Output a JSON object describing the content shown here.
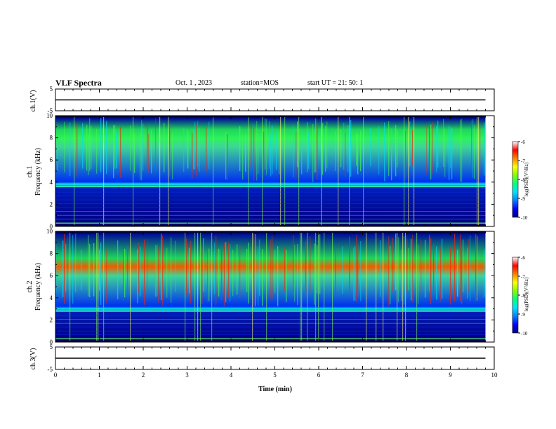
{
  "header": {
    "title": "VLF Spectra",
    "date": "Oct. 1 , 2023",
    "station": "station=MOS",
    "start": "start UT =  21: 50: 1"
  },
  "chart_data": [
    {
      "type": "line",
      "panel": "ch1-voltage",
      "ylabel": "ch.1(V)",
      "ylim": [
        -5,
        5
      ],
      "yticks": [
        "5",
        "-5"
      ],
      "series": [
        {
          "x": [
            0.0,
            9.8
          ],
          "y": [
            0.0,
            0.0
          ]
        }
      ]
    },
    {
      "type": "heatmap",
      "panel": "ch1-spectrogram",
      "ylabel": "ch.1",
      "ylabel2": "Frequency (kHz)",
      "ylim": [
        0,
        10
      ],
      "yticks": [
        "0",
        "2",
        "4",
        "6",
        "8",
        "10"
      ],
      "xlim": [
        0,
        10
      ],
      "data_end_min": 9.8,
      "colorbar": {
        "label": "log(PSD)(V²/Hz)",
        "range": [
          -10,
          -6
        ],
        "ticks": [
          "-6",
          "-7",
          "-8",
          "-9",
          "-10"
        ]
      },
      "band_khz": [
        4.0,
        9.8
      ],
      "peak_khz": 8.0
    },
    {
      "type": "heatmap",
      "panel": "ch2-spectrogram",
      "ylabel": "ch.2",
      "ylabel2": "Frequency (kHz)",
      "ylim": [
        0,
        10
      ],
      "yticks": [
        "0",
        "2",
        "4",
        "6",
        "8",
        "10"
      ],
      "xlim": [
        0,
        10
      ],
      "data_end_min": 9.8,
      "colorbar": {
        "label": "log(PSD)(V²/Hz)",
        "range": [
          -10,
          -6
        ],
        "ticks": [
          "-6",
          "-7",
          "-8",
          "-9",
          "-10"
        ]
      },
      "band_khz": [
        3.2,
        9.8
      ],
      "peak_khz": 6.8
    },
    {
      "type": "line",
      "panel": "ch3-voltage",
      "ylabel": "ch.3(V)",
      "ylim": [
        -5,
        5
      ],
      "yticks": [
        "5",
        "-5"
      ],
      "xlabel": "Time (min)",
      "xticks": [
        "0",
        "1",
        "2",
        "3",
        "4",
        "5",
        "6",
        "7",
        "8",
        "9",
        "10"
      ],
      "series": [
        {
          "x": [
            0.0,
            9.8
          ],
          "y": [
            0.0,
            0.0
          ]
        }
      ]
    }
  ],
  "colors": {
    "colormap": [
      "#000080",
      "#0000ff",
      "#0080ff",
      "#00e0ff",
      "#00ff80",
      "#80ff00",
      "#ffff00",
      "#ff8000",
      "#ff0000",
      "#ffffff"
    ],
    "axis": "#000000",
    "background": "#ffffff"
  }
}
